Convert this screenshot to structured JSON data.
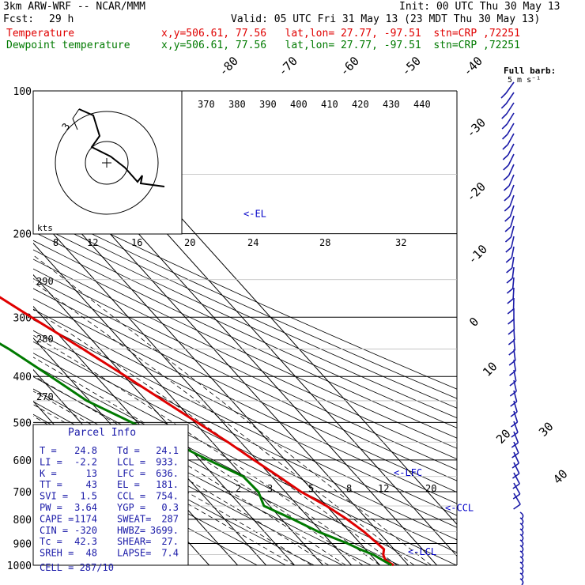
{
  "header": {
    "model": "3km ARW-WRF -- NCAR/MMM",
    "init": "Init: 00 UTC Thu 30 May 13",
    "fcst_label": "Fcst:",
    "fcst_value": "29 h",
    "valid": "Valid: 05 UTC Fri 31 May 13 (23 MDT Thu 30 May 13)",
    "temp_label": "Temperature",
    "temp_loc": "x,y=506.61, 77.56   lat,lon= 27.77, -97.51  stn=CRP ,72251",
    "dew_label": "Dewpoint temperature",
    "dew_loc": "x,y=506.61, 77.56   lat,lon= 27.77, -97.51  stn=CRP ,72251",
    "full_barb": "Full barb:",
    "full_barb_unit": "5 m s⁻¹"
  },
  "colors": {
    "temperature": "#e00000",
    "dewpoint": "#007a00",
    "wind": "#0000c8",
    "text": "#000000"
  },
  "chart_data": {
    "type": "line",
    "pressure_levels_hpa": [
      100,
      200,
      300,
      400,
      500,
      600,
      700,
      800,
      900,
      1000
    ],
    "isotherm_labels_c": [
      "-80",
      "-70",
      "-60",
      "-50",
      "-40",
      "-30",
      "-20",
      "-10",
      "0",
      "10",
      "20",
      "30",
      "40"
    ],
    "isentrope_labels_k": [
      "370",
      "380",
      "390",
      "400",
      "410",
      "420",
      "430",
      "440"
    ],
    "mixing_ratio_labels": [
      "8",
      "12",
      "16",
      "20",
      "24",
      "28",
      "32"
    ],
    "mixing_ratio_labels_low": [
      "2",
      "3",
      "5",
      "8",
      "12",
      "20"
    ],
    "theta_e_labels": [
      "290",
      "280",
      "270"
    ],
    "series": [
      {
        "name": "Temperature",
        "points": [
          [
            1000,
            24.8
          ],
          [
            975,
            23.5
          ],
          [
            950,
            24.5
          ],
          [
            925,
            26.5
          ],
          [
            900,
            26.0
          ],
          [
            850,
            25.0
          ],
          [
            800,
            23.0
          ],
          [
            750,
            20.0
          ],
          [
            700,
            15.5
          ],
          [
            650,
            12.5
          ],
          [
            600,
            9.0
          ],
          [
            550,
            5.5
          ],
          [
            500,
            1.0
          ],
          [
            450,
            -4.0
          ],
          [
            400,
            -9.5
          ],
          [
            350,
            -16.0
          ],
          [
            300,
            -24.0
          ],
          [
            250,
            -33.0
          ],
          [
            200,
            -45.0
          ],
          [
            150,
            -58.0
          ],
          [
            125,
            -63.0
          ],
          [
            110,
            -68.0
          ],
          [
            100,
            -72.5
          ]
        ]
      },
      {
        "name": "Dewpoint temperature",
        "points": [
          [
            1000,
            24.1
          ],
          [
            975,
            22.5
          ],
          [
            950,
            21.0
          ],
          [
            925,
            18.0
          ],
          [
            900,
            15.5
          ],
          [
            850,
            9.0
          ],
          [
            800,
            4.0
          ],
          [
            750,
            -2.0
          ],
          [
            700,
            0.5
          ],
          [
            650,
            0.0
          ],
          [
            600,
            -7.0
          ],
          [
            550,
            -14.0
          ],
          [
            500,
            -22.0
          ],
          [
            450,
            -31.0
          ],
          [
            400,
            -36.0
          ],
          [
            350,
            -42.0
          ],
          [
            300,
            -51.0
          ],
          [
            250,
            -59.0
          ],
          [
            200,
            -65.0
          ],
          [
            150,
            -71.0
          ],
          [
            125,
            -73.0
          ],
          [
            100,
            -76.0
          ]
        ]
      }
    ],
    "markers": [
      {
        "label": "<-EL",
        "p": 181
      },
      {
        "label": "<-LFC",
        "p": 636
      },
      {
        "label": "<-CCL",
        "p": 754
      },
      {
        "label": "<-LCL",
        "p": 933
      }
    ],
    "hodograph_unit": "kts",
    "hodograph_ring_labels": [
      "3"
    ]
  },
  "parcel": {
    "title": "Parcel Info",
    "rows": [
      [
        "T   =",
        "24.8",
        "Td =",
        "24.1"
      ],
      [
        "LI  =",
        "-2.2",
        "LCL =",
        "933."
      ],
      [
        "K   =",
        "13",
        "LFC =",
        "636."
      ],
      [
        "TT  =",
        "43",
        "EL  =",
        "181."
      ],
      [
        "SVI =",
        "1.5",
        "CCL =",
        "754."
      ],
      [
        "PW  =",
        "3.64",
        "YGP =",
        "0.3"
      ],
      [
        "CAPE =",
        "1174",
        "SWEAT=",
        "287"
      ],
      [
        "CIN  =",
        "-320",
        "HWBZ=",
        "3699."
      ],
      [
        "Tc  =",
        "42.3",
        "SHEAR=",
        "27."
      ],
      [
        "SREH =",
        "48",
        "LAPSE=",
        "7.4"
      ]
    ],
    "cell": "CELL = 287/10"
  }
}
